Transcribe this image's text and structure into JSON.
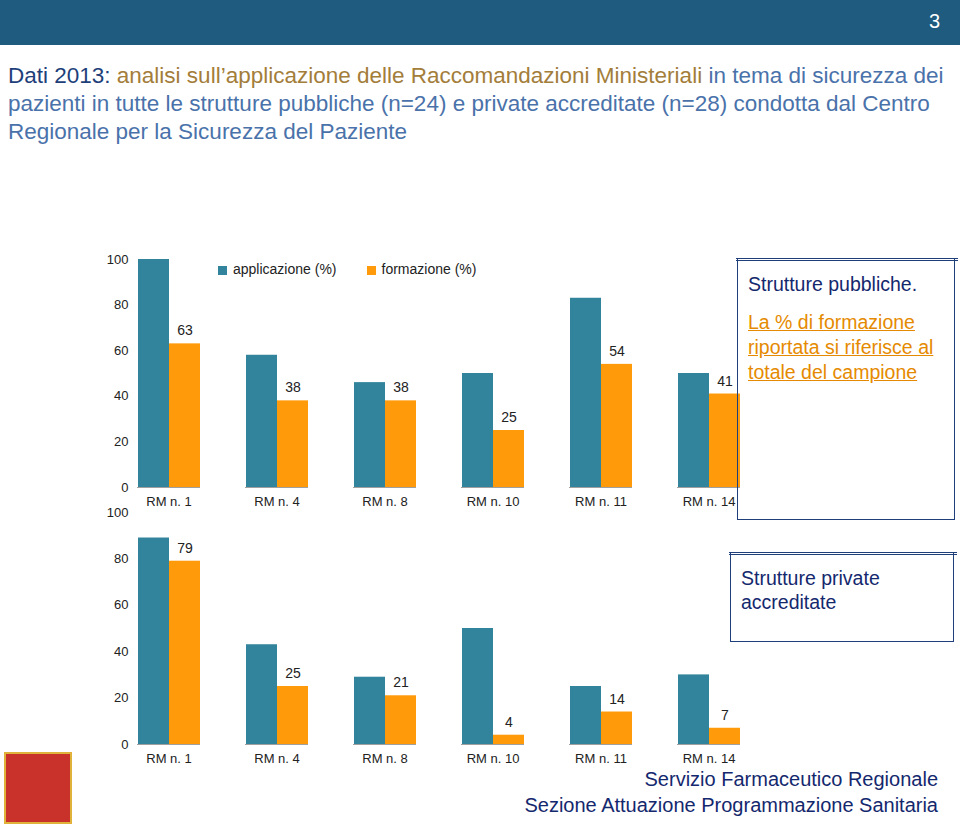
{
  "page_number": "3",
  "title": [
    {
      "text": "Dati 2013: ",
      "color": "#1e3f7a"
    },
    {
      "text": "analisi sull’applicazione delle Raccomandazioni Ministeriali",
      "color": "#a37d3a"
    },
    {
      "text": " in tema di sicurezza dei pazienti in tutte le strutture pubbliche (n=24) e private accreditate (n=28) condotta dal Centro Regionale per la Sicurezza del Paziente",
      "color": "#4a72aa"
    }
  ],
  "footer": [
    "Servizio Farmaceutico Regionale",
    "Sezione Attuazione Programmazione Sanitaria"
  ],
  "chart_data": [
    {
      "type": "bar",
      "categories": [
        "RM n. 1",
        "RM n. 4",
        "RM n. 8",
        "RM n. 10",
        "RM n. 11",
        "RM n. 14"
      ],
      "series": [
        {
          "name": "applicazione (%)",
          "color": "#31849b",
          "values": [
            100,
            58,
            46,
            50,
            83,
            50
          ],
          "data_labels": false
        },
        {
          "name": "formazione (%)",
          "color": "#ff9a0a",
          "values": [
            63,
            38,
            38,
            25,
            54,
            41
          ],
          "data_labels": true
        }
      ],
      "ylim": [
        0,
        100
      ],
      "yticks": [
        0,
        20,
        40,
        60,
        80,
        100
      ],
      "grid": false,
      "legend": "top",
      "annotations": [
        "Strutture pubbliche.",
        "La % di formazione riportata si riferisce al totale del campione"
      ]
    },
    {
      "type": "bar",
      "categories": [
        "RM n. 1",
        "RM n. 4",
        "RM n. 8",
        "RM n. 10",
        "RM n. 11",
        "RM n. 14"
      ],
      "series": [
        {
          "color": "#31849b",
          "values": [
            89,
            43,
            29,
            50,
            25,
            30
          ],
          "data_labels": false
        },
        {
          "color": "#ff9a0a",
          "values": [
            79,
            25,
            21,
            4,
            14,
            7
          ],
          "data_labels": true
        }
      ],
      "ylim": [
        0,
        100
      ],
      "yticks": [
        0,
        20,
        40,
        60,
        80,
        100
      ],
      "grid": false,
      "annotations": [
        "Strutture private accreditate"
      ]
    }
  ]
}
